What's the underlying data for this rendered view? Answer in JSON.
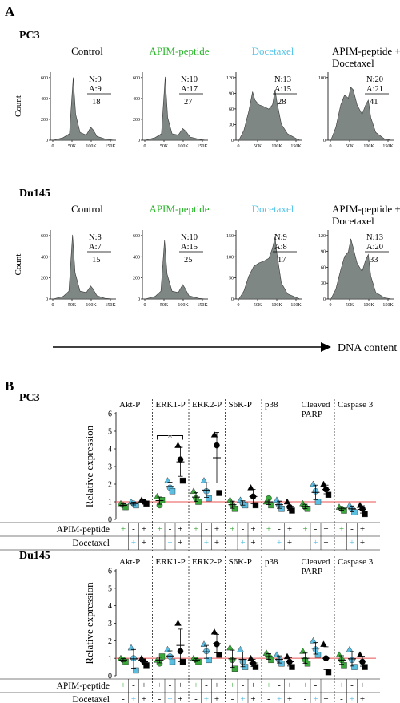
{
  "panel_a": {
    "label": "A",
    "x_axis_label": "DNA content",
    "hist_ylabel": "Count",
    "x_ticks": [
      "0",
      "50K",
      "100K",
      "150K"
    ],
    "conditions": [
      {
        "label": "Control",
        "color": "#000000"
      },
      {
        "label": "APIM-peptide",
        "color": "#2ab52a"
      },
      {
        "label": "Docetaxel",
        "color": "#56c4e8"
      },
      {
        "label": "APIM-peptide +\nDocetaxel",
        "color": "#000000"
      }
    ],
    "rows": [
      {
        "cell_line": "PC3",
        "histograms": [
          {
            "y_ticks": [
              "0",
              "200",
              "400",
              "600"
            ],
            "n": "N:9",
            "a": "A:9",
            "total": "18"
          },
          {
            "y_ticks": [
              "0",
              "200",
              "400",
              "600"
            ],
            "n": "N:10",
            "a": "A:17",
            "total": "27"
          },
          {
            "y_ticks": [
              "0",
              "30",
              "60",
              "90",
              "120"
            ],
            "n": "N:13",
            "a": "A:15",
            "total": "28"
          },
          {
            "y_ticks": [
              "0",
              "100"
            ],
            "n": "N:20",
            "a": "A:21",
            "total": "41"
          }
        ]
      },
      {
        "cell_line": "Du145",
        "histograms": [
          {
            "y_ticks": [
              "0",
              "200",
              "400",
              "600"
            ],
            "n": "N:8",
            "a": "A:7",
            "total": "15"
          },
          {
            "y_ticks": [
              "0",
              "200",
              "400",
              "600"
            ],
            "n": "N:10",
            "a": "A:15",
            "total": "25"
          },
          {
            "y_ticks": [
              "0",
              "50",
              "100",
              "150"
            ],
            "n": "N:9",
            "a": "A:8",
            "total": "17"
          },
          {
            "y_ticks": [
              "0",
              "30",
              "60",
              "90",
              "120"
            ],
            "n": "N:13",
            "a": "A:20",
            "total": "33"
          }
        ]
      }
    ]
  },
  "panel_b": {
    "label": "B",
    "y_label": "Relative expression",
    "y_ticks": [
      "0",
      "1",
      "2",
      "3",
      "4",
      "5",
      "6"
    ],
    "proteins": [
      "Akt-P",
      "ERK1-P",
      "ERK2-P",
      "S6K-P",
      "p38",
      "Cleaved\nPARP",
      "Caspase 3"
    ],
    "significance": "*",
    "row_labels": [
      "APIM-peptide",
      "Docetaxel"
    ],
    "treatment_signs": {
      "apim": [
        "+",
        "-",
        "+"
      ],
      "doce": [
        "-",
        "+",
        "+"
      ]
    },
    "colors": {
      "apim": "#3aa83a",
      "doce": "#5bbde0",
      "combo": "#000000",
      "reference": "#e85050"
    },
    "cell_lines": [
      "PC3",
      "Du145"
    ]
  },
  "chart_data": [
    {
      "type": "scatter",
      "title": "PC3",
      "ylabel": "Relative expression",
      "ylim": [
        0,
        6
      ],
      "categories": [
        "Akt-P",
        "ERK1-P",
        "ERK2-P",
        "S6K-P",
        "p38",
        "Cleaved PARP",
        "Caspase 3"
      ],
      "series": [
        {
          "name": "APIM-peptide",
          "points": [
            [
              0.9,
              0.8,
              0.7
            ],
            [
              1.3,
              0.8,
              1.1
            ],
            [
              1.6,
              1.2,
              1.0
            ],
            [
              1.1,
              0.8,
              0.6
            ],
            [
              1.0,
              1.2,
              0.8
            ],
            [
              0.9,
              0.7,
              0.6
            ],
            [
              0.7,
              0.6,
              0.5
            ]
          ]
        },
        {
          "name": "Docetaxel",
          "points": [
            [
              1.0,
              0.9,
              0.8
            ],
            [
              2.2,
              1.8,
              1.6
            ],
            [
              2.2,
              1.6,
              1.2
            ],
            [
              1.1,
              0.9,
              0.8
            ],
            [
              1.1,
              0.8,
              0.6
            ],
            [
              2.0,
              1.6,
              1.0
            ],
            [
              0.8,
              0.6,
              0.4
            ]
          ]
        },
        {
          "name": "APIM-peptide + Docetaxel",
          "points": [
            [
              1.1,
              1.0,
              0.9
            ],
            [
              4.2,
              3.4,
              2.2
            ],
            [
              4.8,
              4.2,
              1.5
            ],
            [
              1.8,
              1.3,
              0.8
            ],
            [
              1.0,
              0.7,
              0.5
            ],
            [
              2.0,
              1.7,
              1.4
            ],
            [
              0.8,
              0.6,
              0.3
            ]
          ]
        }
      ]
    },
    {
      "type": "scatter",
      "title": "Du145",
      "ylabel": "Relative expression",
      "ylim": [
        0,
        6
      ],
      "categories": [
        "Akt-P",
        "ERK1-P",
        "ERK2-P",
        "S6K-P",
        "p38",
        "Cleaved PARP",
        "Caspase 3"
      ],
      "series": [
        {
          "name": "APIM-peptide",
          "points": [
            [
              1.0,
              0.9,
              0.8
            ],
            [
              0.9,
              0.7,
              1.1
            ],
            [
              1.0,
              0.9,
              0.8
            ],
            [
              1.6,
              0.9,
              0.4
            ],
            [
              1.3,
              1.1,
              0.9
            ],
            [
              1.4,
              0.9,
              0.7
            ],
            [
              1.2,
              0.9,
              0.6
            ]
          ]
        },
        {
          "name": "Docetaxel",
          "points": [
            [
              1.6,
              1.0,
              0.3
            ],
            [
              1.5,
              1.1,
              0.8
            ],
            [
              1.8,
              1.4,
              0.9
            ],
            [
              1.5,
              0.8,
              0.5
            ],
            [
              1.2,
              0.9,
              0.7
            ],
            [
              2.0,
              1.5,
              1.2
            ],
            [
              1.5,
              0.9,
              0.5
            ]
          ]
        },
        {
          "name": "APIM-peptide + Docetaxel",
          "points": [
            [
              1.0,
              0.8,
              0.6
            ],
            [
              3.0,
              1.4,
              0.8
            ],
            [
              2.5,
              1.8,
              1.2
            ],
            [
              1.0,
              0.7,
              0.5
            ],
            [
              1.1,
              0.8,
              0.5
            ],
            [
              1.8,
              1.0,
              0.2
            ],
            [
              1.2,
              0.8,
              0.5
            ]
          ]
        }
      ]
    }
  ]
}
